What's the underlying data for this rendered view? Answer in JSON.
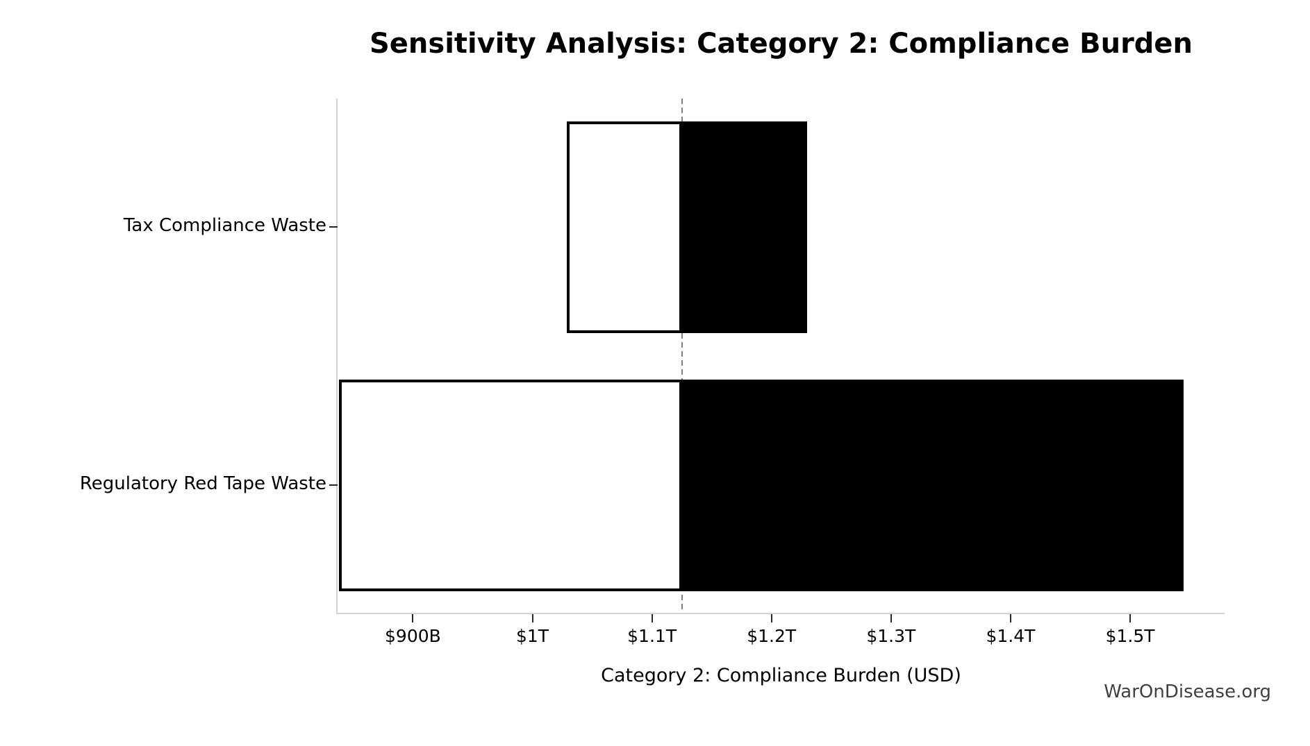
{
  "title": "Sensitivity Analysis: Category 2: Compliance Burden",
  "watermark": "WarOnDisease.org",
  "chart_data": {
    "type": "bar",
    "subtype": "tornado-horizontal",
    "title": "Sensitivity Analysis: Category 2: Compliance Burden",
    "xlabel": "Category 2: Compliance Burden (USD)",
    "ylabel": "",
    "unit": "billions of USD",
    "categories": [
      "Tax Compliance Waste",
      "Regulatory Red Tape Waste"
    ],
    "baseline_value": 1125,
    "series": [
      {
        "name": "Tax Compliance Waste",
        "low": 1029,
        "high": 1230
      },
      {
        "name": "Regulatory Red Tape Waste",
        "low": 838,
        "high": 1545
      }
    ],
    "xlim": [
      837,
      1579
    ],
    "xticks": [
      {
        "value": 900,
        "label": "$900B"
      },
      {
        "value": 1000,
        "label": "$1T"
      },
      {
        "value": 1100,
        "label": "$1.1T"
      },
      {
        "value": 1200,
        "label": "$1.2T"
      },
      {
        "value": 1300,
        "label": "$1.3T"
      },
      {
        "value": 1400,
        "label": "$1.4T"
      },
      {
        "value": 1500,
        "label": "$1.5T"
      }
    ],
    "grid": false,
    "legend": null,
    "colors": {
      "low_fill": "#ffffff",
      "high_fill": "#000000",
      "bar_edge": "#000000",
      "baseline_line": "#828282",
      "spine": "#d4d4d4",
      "tick": "#262626",
      "watermark": "#404040"
    }
  }
}
